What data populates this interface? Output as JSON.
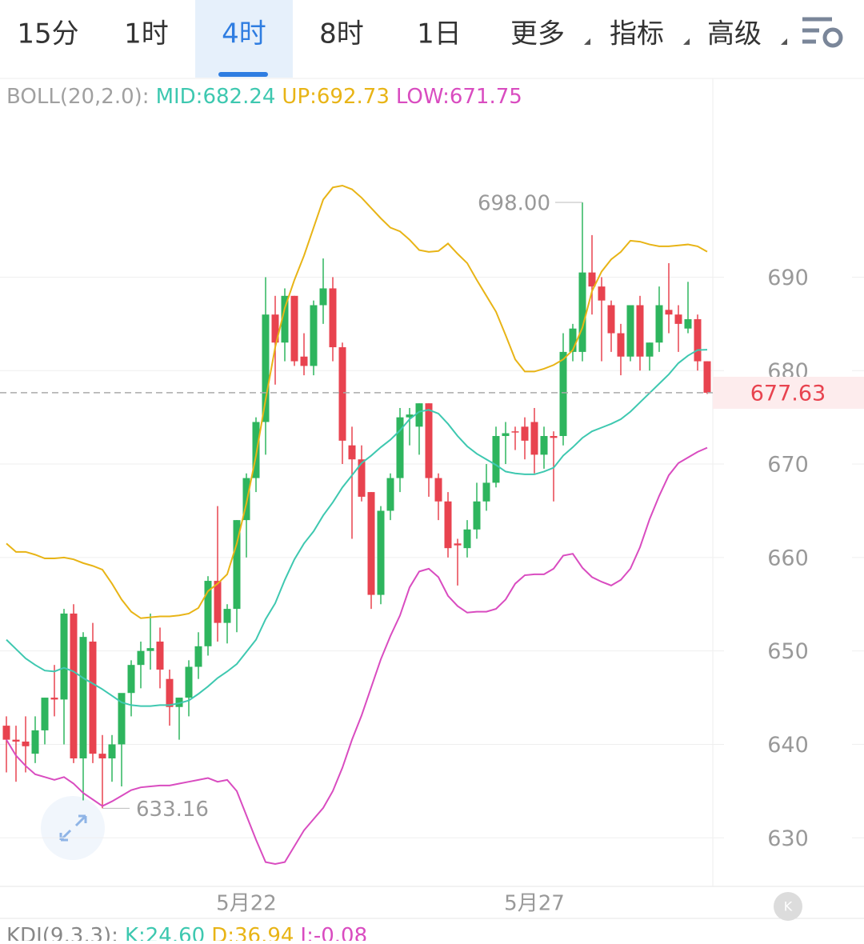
{
  "tabs": [
    "15分",
    "1时",
    "4时",
    "8时",
    "1日",
    "更多",
    "指标",
    "高级"
  ],
  "chart_data": {
    "type": "candlestick",
    "indicator": "BOLL(20,2.0):",
    "categories": [
      null,
      null,
      null,
      null,
      null,
      null,
      null,
      null,
      null,
      null,
      null,
      null,
      null,
      null,
      null,
      null,
      null,
      null,
      null,
      null,
      null,
      null,
      null,
      null,
      null,
      "5月22",
      null,
      null,
      null,
      null,
      null,
      null,
      null,
      null,
      null,
      null,
      null,
      null,
      null,
      null,
      null,
      null,
      null,
      null,
      null,
      null,
      null,
      null,
      null,
      null,
      null,
      null,
      null,
      null,
      null,
      "5月27",
      null,
      null,
      null,
      null,
      null,
      null,
      null,
      null,
      null,
      null,
      null,
      null,
      null,
      null,
      null,
      null,
      null,
      null
    ],
    "open": [
      642,
      640.5,
      640.3,
      639,
      641.5,
      645,
      644.8,
      654,
      638.5,
      651,
      639,
      638.5,
      640,
      645.5,
      648.5,
      650,
      651,
      647,
      644,
      645,
      648.3,
      650.5,
      657.5,
      653,
      654.5,
      664,
      668.5,
      674.5,
      686,
      683,
      688,
      681.5,
      680.5,
      687,
      688.8,
      682.5,
      672,
      670.5,
      667,
      656,
      665,
      668.5,
      675,
      674,
      676.5,
      668.5,
      666,
      661.5,
      661,
      663,
      666,
      668,
      673,
      673.5,
      674,
      674.5,
      671,
      673,
      673,
      682,
      682,
      690.5,
      689,
      687,
      684,
      681.5,
      687,
      681.5,
      683,
      686.5,
      686,
      684.5,
      685.5,
      681
    ],
    "high": [
      643,
      642,
      643,
      643,
      645,
      648.5,
      654.5,
      655,
      652,
      653,
      641,
      641,
      645,
      649,
      651,
      654,
      652.5,
      648,
      645,
      649,
      652,
      658,
      665.5,
      655,
      664,
      669,
      675,
      690,
      688,
      688.8,
      688,
      684,
      687.5,
      692,
      690,
      683,
      674,
      672,
      667,
      665.5,
      669,
      676,
      676,
      676.5,
      676.5,
      669,
      667,
      662,
      664,
      668,
      670,
      674,
      674.5,
      674,
      675,
      676,
      674,
      673.5,
      684,
      685,
      698,
      694.5,
      690,
      687.5,
      685,
      687,
      688,
      683,
      689,
      691.5,
      687,
      689.5,
      686,
      681
    ],
    "low": [
      637,
      636,
      637,
      638,
      640,
      643,
      640,
      638,
      634,
      638,
      633.16,
      636,
      635.5,
      643,
      646,
      648,
      646,
      642,
      640.5,
      643,
      647,
      649.5,
      651,
      650.8,
      652,
      660,
      667,
      671,
      678.5,
      681,
      680.5,
      679.5,
      679.5,
      685,
      681,
      670,
      662,
      666,
      654.5,
      655,
      664,
      667,
      672,
      671,
      666.5,
      664,
      660,
      657,
      660,
      662,
      665,
      667.5,
      670,
      671.5,
      670.5,
      669,
      669.5,
      666,
      672,
      681,
      681,
      686,
      681,
      682,
      679.5,
      681,
      680,
      680,
      682,
      684,
      682,
      684,
      680,
      677.5
    ],
    "close": [
      640.5,
      640.3,
      639.8,
      641.5,
      645,
      644.8,
      654,
      638.5,
      651.5,
      639,
      638.5,
      640,
      645.5,
      648.5,
      650,
      650.3,
      648,
      644,
      645,
      648.3,
      650.5,
      657.5,
      653,
      654.5,
      664,
      668.5,
      674.5,
      686,
      683,
      688,
      681,
      680.5,
      687,
      688.8,
      682.5,
      672.5,
      670.5,
      666.5,
      656,
      665,
      668.5,
      675,
      675.3,
      676.5,
      668.5,
      666,
      661,
      661.3,
      663,
      666,
      668,
      673,
      673.3,
      673.4,
      672.5,
      671,
      673,
      672.8,
      682,
      684.5,
      690.5,
      689,
      687.5,
      684,
      681.5,
      687,
      681.5,
      683,
      687,
      686,
      685,
      685.5,
      681,
      677.63
    ],
    "up_color": "#2eb55e",
    "down_color": "#e8434f",
    "series": [
      {
        "name": "UP",
        "legend": "UP:692.73",
        "color": "#e8b416",
        "values": [
          661.5,
          660.6,
          660.6,
          660.3,
          659.9,
          659.9,
          660.0,
          659.8,
          659.4,
          659.1,
          658.7,
          657.2,
          655.5,
          654.2,
          653.5,
          653.6,
          653.7,
          653.7,
          653.8,
          654.0,
          654.6,
          656.4,
          657.2,
          658.2,
          661.5,
          665.8,
          670.9,
          676.9,
          682.5,
          686.7,
          689.7,
          692.3,
          695.3,
          698.3,
          699.6,
          699.8,
          699.4,
          698.5,
          697.4,
          696.3,
          695.3,
          694.9,
          694.0,
          692.9,
          692.7,
          692.8,
          693.6,
          692.5,
          691.5,
          689.7,
          688.0,
          686.3,
          683.8,
          681.2,
          679.9,
          679.9,
          680.2,
          680.6,
          681.2,
          682.2,
          684.6,
          688.5,
          690.6,
          691.9,
          692.7,
          693.9,
          693.8,
          693.5,
          693.3,
          693.3,
          693.4,
          693.5,
          693.3,
          692.73
        ]
      },
      {
        "name": "MID",
        "legend": "MID:682.24",
        "color": "#3ec8b0",
        "values": [
          651.2,
          650.2,
          649.2,
          648.5,
          647.9,
          647.8,
          648.2,
          647.8,
          647.1,
          646.5,
          645.9,
          645.2,
          644.5,
          644.2,
          644.1,
          644.1,
          644.2,
          644.2,
          644.4,
          644.7,
          645.4,
          646.2,
          647.1,
          647.8,
          648.6,
          649.9,
          651.2,
          653.4,
          655.1,
          657.6,
          659.8,
          661.5,
          662.8,
          664.5,
          665.9,
          667.5,
          668.8,
          670.1,
          670.9,
          671.8,
          672.6,
          673.6,
          674.8,
          675.6,
          675.8,
          675.4,
          674.3,
          673.0,
          671.9,
          671.1,
          670.5,
          669.9,
          669.2,
          669.0,
          668.9,
          668.9,
          669.2,
          669.6,
          670.9,
          671.8,
          672.8,
          673.5,
          673.9,
          674.3,
          674.8,
          675.6,
          676.6,
          677.6,
          678.6,
          679.6,
          680.8,
          681.6,
          682.2,
          682.24
        ]
      },
      {
        "name": "LOW",
        "legend": "LOW:671.75",
        "color": "#d94cc0",
        "values": [
          640.5,
          638.8,
          637.7,
          636.8,
          636.5,
          636.2,
          636.5,
          635.8,
          634.8,
          634.1,
          633.4,
          633.9,
          634.5,
          635.1,
          635.4,
          635.5,
          635.6,
          635.6,
          635.8,
          636.0,
          636.2,
          636.4,
          636.0,
          636.2,
          635.0,
          632.4,
          629.8,
          627.4,
          627.2,
          627.4,
          629.1,
          630.8,
          632.0,
          633.2,
          635.0,
          637.5,
          640.5,
          643.1,
          646.1,
          649.1,
          651.6,
          653.8,
          656.8,
          658.5,
          658.8,
          657.9,
          655.9,
          654.8,
          654.1,
          654.2,
          654.2,
          654.5,
          655.5,
          657.2,
          658.1,
          658.2,
          658.2,
          658.8,
          660.2,
          660.4,
          658.9,
          657.9,
          657.4,
          657.0,
          657.6,
          658.8,
          661.1,
          664.1,
          666.6,
          668.8,
          670.1,
          670.7,
          671.3,
          671.75
        ]
      }
    ],
    "annotations": [
      {
        "value": 698,
        "label": "698.00"
      },
      {
        "value": 633.16,
        "label": "633.16"
      }
    ],
    "ylim": [
      624.8,
      711.1
    ],
    "yticks": [
      630,
      640,
      650,
      660,
      670,
      680,
      690
    ],
    "grid": true
  },
  "sub_indicator": {
    "name": "KDJ(9,3,3):",
    "k": "K:24.60",
    "d": "D:36.94",
    "j": "J:-0.08"
  }
}
